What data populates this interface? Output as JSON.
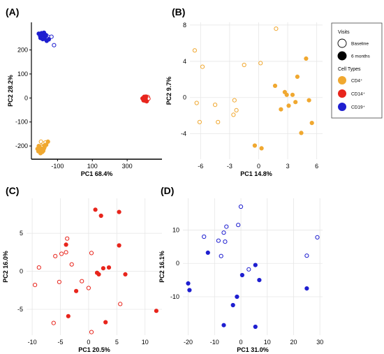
{
  "colors": {
    "cd4": "#f0a830",
    "cd14": "#e8251c",
    "cd19": "#1f1fd0",
    "grid": "#e6e6e6",
    "axis": "#000000"
  },
  "legend": {
    "visits_title": "Visits",
    "baseline_label": "Baseline",
    "six_months_label": "6 months",
    "cell_types_title": "Cell Types",
    "cd4_label": "CD4⁺",
    "cd14_label": "CD14⁺",
    "cd19_label": "CD19⁺"
  },
  "chart_data": [
    {
      "panel": "(A)",
      "type": "scatter",
      "xlabel": "PC1 68.4%",
      "ylabel": "PC2 28.2%",
      "xlim": [
        -250,
        500
      ],
      "ylim": [
        -255,
        315
      ],
      "xticks": [
        -100,
        100,
        300
      ],
      "yticks": [
        -200,
        -100,
        0,
        100,
        200
      ],
      "grid": false,
      "axes_style": "lines",
      "series": [
        {
          "cell_type": "CD19",
          "visit": "baseline",
          "points": [
            [
              -196,
              262
            ],
            [
              -182,
              255
            ],
            [
              -165,
              256
            ],
            [
              -170,
              248
            ],
            [
              -155,
              255
            ],
            [
              -135,
              255
            ],
            [
              -120,
              220
            ],
            [
              -188,
              250
            ],
            [
              -176,
              262
            ],
            [
              -160,
              248
            ]
          ]
        },
        {
          "cell_type": "CD19",
          "visit": "6 months",
          "points": [
            [
              -208,
              268
            ],
            [
              -200,
              258
            ],
            [
              -192,
              270
            ],
            [
              -185,
              245
            ],
            [
              -178,
              272
            ],
            [
              -170,
              256
            ],
            [
              -162,
              238
            ],
            [
              -198,
              250
            ],
            [
              -186,
              262
            ],
            [
              -174,
              246
            ],
            [
              -166,
              262
            ],
            [
              -150,
              244
            ]
          ]
        },
        {
          "cell_type": "CD14",
          "visit": "baseline",
          "points": [
            [
              392,
              -5
            ],
            [
              398,
              5
            ],
            [
              405,
              -12
            ],
            [
              410,
              2
            ],
            [
              415,
              -8
            ],
            [
              418,
              4
            ],
            [
              422,
              -3
            ]
          ]
        },
        {
          "cell_type": "CD14",
          "visit": "6 months",
          "points": [
            [
              388,
              -2
            ],
            [
              394,
              -10
            ],
            [
              400,
              0
            ],
            [
              404,
              -6
            ],
            [
              408,
              6
            ],
            [
              412,
              -14
            ],
            [
              406,
              -2
            ],
            [
              396,
              3
            ]
          ]
        },
        {
          "cell_type": "CD4",
          "visit": "baseline",
          "points": [
            [
              -195,
              -182
            ],
            [
              -188,
              -198
            ],
            [
              -180,
              -190
            ],
            [
              -175,
              -205
            ],
            [
              -168,
              -185
            ],
            [
              -185,
              -210
            ],
            [
              -192,
              -205
            ]
          ]
        },
        {
          "cell_type": "CD4",
          "visit": "6 months",
          "points": [
            [
              -215,
              -212
            ],
            [
              -208,
              -200
            ],
            [
              -205,
              -220
            ],
            [
              -200,
              -208
            ],
            [
              -196,
              -218
            ],
            [
              -190,
              -212
            ],
            [
              -182,
              -220
            ],
            [
              -175,
              -198
            ],
            [
              -165,
              -195
            ],
            [
              -155,
              -182
            ],
            [
              -198,
              -230
            ],
            [
              -188,
              -225
            ],
            [
              -210,
              -222
            ],
            [
              -178,
              -210
            ]
          ]
        }
      ]
    },
    {
      "panel": "(B)",
      "type": "scatter",
      "xlabel": "PC1 14.8%",
      "ylabel": "PC2 9.7%",
      "xlim": [
        -7.1,
        6.6
      ],
      "ylim": [
        -6.8,
        8.3
      ],
      "xticks": [
        -6,
        -3,
        0,
        3,
        6
      ],
      "yticks": [
        -4,
        0,
        4,
        8
      ],
      "grid": true,
      "series": [
        {
          "cell_type": "CD4",
          "visit": "baseline",
          "points": [
            [
              -6.6,
              5.2
            ],
            [
              -5.8,
              3.4
            ],
            [
              -6.4,
              -0.6
            ],
            [
              -6.1,
              -2.7
            ],
            [
              -4.5,
              -0.8
            ],
            [
              -4.2,
              -2.7
            ],
            [
              -2.6,
              -1.9
            ],
            [
              -2.5,
              -0.3
            ],
            [
              -2.3,
              -1.4
            ],
            [
              -1.5,
              3.6
            ],
            [
              0.2,
              3.8
            ],
            [
              1.8,
              7.6
            ]
          ]
        },
        {
          "cell_type": "CD4",
          "visit": "6 months",
          "points": [
            [
              -0.4,
              -5.3
            ],
            [
              0.3,
              -5.6
            ],
            [
              1.7,
              1.3
            ],
            [
              2.3,
              -1.3
            ],
            [
              2.7,
              0.6
            ],
            [
              2.9,
              0.3
            ],
            [
              3.1,
              -0.9
            ],
            [
              3.5,
              0.3
            ],
            [
              3.8,
              -0.5
            ],
            [
              4.0,
              2.3
            ],
            [
              4.4,
              -3.9
            ],
            [
              4.9,
              4.3
            ],
            [
              5.2,
              -0.3
            ],
            [
              5.5,
              -2.8
            ]
          ]
        }
      ]
    },
    {
      "panel": "(C)",
      "type": "scatter",
      "xlabel": "PC1 20.5%",
      "ylabel": "PC2 16.0%",
      "xlim": [
        -11,
        13
      ],
      "ylim": [
        -8.4,
        9.6
      ],
      "xticks": [
        -10,
        -5,
        0,
        5,
        10
      ],
      "yticks": [
        -5,
        0,
        5
      ],
      "grid": true,
      "series": [
        {
          "cell_type": "CD14",
          "visit": "baseline",
          "points": [
            [
              -9.5,
              -1.8
            ],
            [
              -8.8,
              0.5
            ],
            [
              -6.2,
              -6.8
            ],
            [
              -5.9,
              2.0
            ],
            [
              -5.2,
              -1.4
            ],
            [
              -4.8,
              2.3
            ],
            [
              -4.0,
              2.5
            ],
            [
              -3.8,
              4.3
            ],
            [
              -3.0,
              0.9
            ],
            [
              -1.2,
              -1.3
            ],
            [
              0.0,
              -2.2
            ],
            [
              0.5,
              2.4
            ],
            [
              0.5,
              -8.0
            ],
            [
              5.6,
              -4.3
            ]
          ]
        },
        {
          "cell_type": "CD14",
          "visit": "6 months",
          "points": [
            [
              -4.0,
              3.5
            ],
            [
              -3.6,
              -5.9
            ],
            [
              -2.2,
              -2.6
            ],
            [
              1.2,
              8.1
            ],
            [
              2.2,
              7.3
            ],
            [
              1.5,
              -0.2
            ],
            [
              1.8,
              -0.4
            ],
            [
              2.6,
              0.4
            ],
            [
              3.0,
              -6.7
            ],
            [
              3.6,
              0.5
            ],
            [
              5.4,
              7.8
            ],
            [
              5.4,
              3.4
            ],
            [
              6.5,
              -0.4
            ],
            [
              12.0,
              -5.2
            ]
          ]
        }
      ]
    },
    {
      "panel": "(D)",
      "type": "scatter",
      "xlabel": "PC1 31.0%",
      "ylabel": "PC2 16.1%",
      "xlim": [
        -22,
        31
      ],
      "ylim": [
        -21.5,
        19.5
      ],
      "xticks": [
        -20,
        -10,
        0,
        10,
        20,
        30
      ],
      "yticks": [
        -10,
        0,
        10
      ],
      "grid": true,
      "series": [
        {
          "cell_type": "CD19",
          "visit": "baseline",
          "points": [
            [
              -14.0,
              8.0
            ],
            [
              -8.5,
              6.8
            ],
            [
              -7.5,
              2.2
            ],
            [
              -6.5,
              9.2
            ],
            [
              -6.0,
              6.5
            ],
            [
              -5.5,
              11.0
            ],
            [
              -1.0,
              11.5
            ],
            [
              0.0,
              17.0
            ],
            [
              3.0,
              -1.8
            ],
            [
              25.0,
              2.3
            ],
            [
              29.0,
              7.8
            ]
          ]
        },
        {
          "cell_type": "CD19",
          "visit": "6 months",
          "points": [
            [
              -20.0,
              -6.0
            ],
            [
              -19.5,
              -8.0
            ],
            [
              -12.5,
              3.2
            ],
            [
              -6.5,
              -18.5
            ],
            [
              -3.0,
              -12.5
            ],
            [
              -1.5,
              -10.0
            ],
            [
              0.5,
              -3.5
            ],
            [
              5.5,
              -0.5
            ],
            [
              5.5,
              -19.0
            ],
            [
              7.0,
              -5.0
            ],
            [
              25.0,
              -7.5
            ]
          ]
        }
      ]
    }
  ]
}
